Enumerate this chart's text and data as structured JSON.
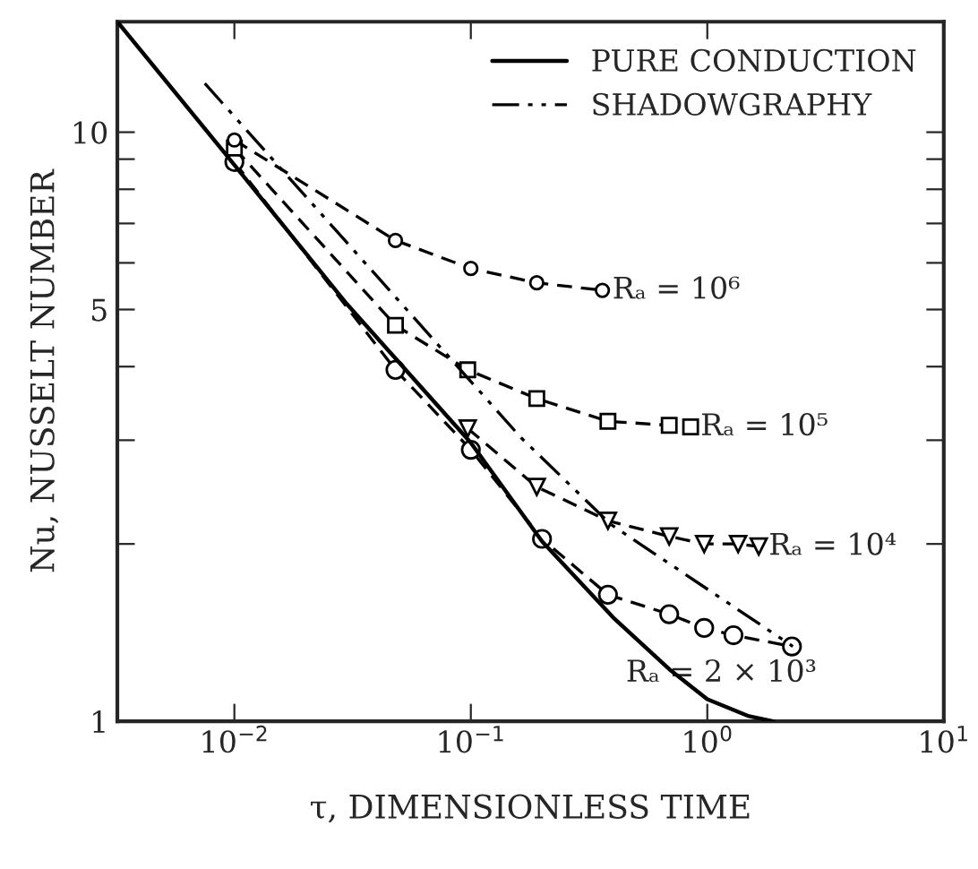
{
  "chart_data": {
    "type": "line",
    "xlabel": "τ, DIMENSIONLESS TIME",
    "ylabel": "Nu, NUSSELT NUMBER",
    "log": "xy",
    "grid": false,
    "legend": "top right",
    "xlim": [
      0.0032,
      10
    ],
    "ylim": [
      1,
      15.4
    ],
    "xticks": [
      {
        "value": 0.01,
        "label": "10$^{−2}$"
      },
      {
        "value": 0.1,
        "label": "10$^{−1}$"
      },
      {
        "value": 1,
        "label": "10$^{0}$"
      },
      {
        "value": 10,
        "label": "10$^{1}$"
      }
    ],
    "yticks": [
      1,
      {
        "value": 2,
        "label": null
      },
      {
        "value": 3,
        "label": null
      },
      {
        "value": 4,
        "label": null
      },
      5,
      {
        "value": 6,
        "label": null
      },
      {
        "value": 7,
        "label": null
      },
      {
        "value": 8,
        "label": null
      },
      {
        "value": 9,
        "label": null
      },
      10
    ],
    "series": [
      {
        "name": "PURE CONDUCTION",
        "color": "#000000",
        "marker": "none",
        "line_style": "solid",
        "x": [
          0.0032,
          0.01,
          0.03,
          0.1,
          0.2,
          0.4,
          0.7,
          1,
          1.5,
          1.9
        ],
        "values": [
          15.4,
          8.8,
          5.1,
          2.97,
          2.02,
          1.5,
          1.22,
          1.09,
          1.02,
          1.0
        ]
      },
      {
        "name": "SHADOWGRAPHY",
        "color": "#000000",
        "marker": "none",
        "line_style": "dashdot",
        "x": [
          0.0075,
          0.163,
          0.39,
          2.3
        ],
        "values": [
          12.1,
          3.03,
          2.16,
          1.34
        ]
      },
      {
        "name": "Rₐ = 10⁶",
        "color": "#000000",
        "marker": "circle",
        "line_style": "dashed",
        "x": [
          0.01,
          0.048,
          0.1,
          0.19,
          0.36
        ],
        "values": [
          9.7,
          6.55,
          5.87,
          5.55,
          5.39
        ]
      },
      {
        "name": "Rₐ = 10⁵",
        "color": "#000000",
        "marker": "square",
        "line_style": "dashed",
        "x": [
          0.01,
          0.048,
          0.097,
          0.19,
          0.38,
          0.69,
          0.85
        ],
        "values": [
          9.4,
          4.7,
          3.95,
          3.53,
          3.23,
          3.18,
          3.16
        ]
      },
      {
        "name": "Rₐ = 10⁴",
        "color": "#000000",
        "marker": "triangle",
        "line_style": "dashed",
        "x": [
          0.097,
          0.19,
          0.38,
          0.69,
          0.97,
          1.35,
          1.65
        ],
        "values": [
          3.14,
          2.5,
          2.19,
          2.06,
          2.0,
          2.0,
          1.98
        ]
      },
      {
        "name": "Rₐ = 2 × 10³",
        "color": "#000000",
        "marker": "circle",
        "line_style": "dashed",
        "x": [
          0.01,
          0.048,
          0.1,
          0.2,
          0.38,
          0.69,
          0.97,
          1.29,
          2.28
        ],
        "values": [
          8.9,
          3.95,
          2.89,
          2.04,
          1.64,
          1.52,
          1.44,
          1.4,
          1.34
        ]
      }
    ]
  }
}
